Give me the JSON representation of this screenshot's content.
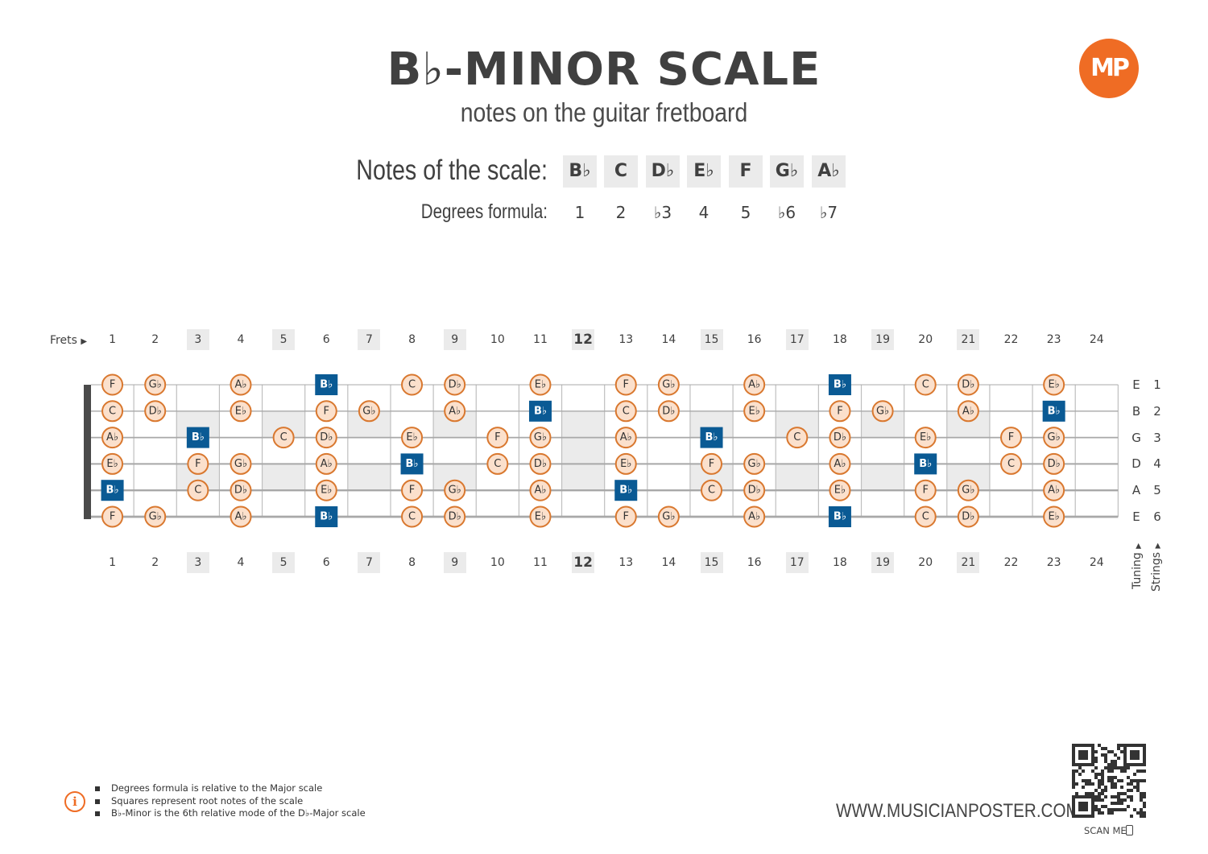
{
  "header": {
    "title": "B♭-MINOR SCALE",
    "subtitle": "notes on the guitar fretboard",
    "logo_text": "MP"
  },
  "scale": {
    "notes_label": "Notes of the scale:",
    "degrees_label": "Degrees formula:",
    "notes": [
      "B♭",
      "C",
      "D♭",
      "E♭",
      "F",
      "G♭",
      "A♭"
    ],
    "degrees": [
      "1",
      "2",
      "♭3",
      "4",
      "5",
      "♭6",
      "♭7"
    ]
  },
  "fretboard": {
    "frets_label": "Frets",
    "fret_numbers": [
      "1",
      "2",
      "3",
      "4",
      "5",
      "6",
      "7",
      "8",
      "9",
      "10",
      "11",
      "12",
      "13",
      "14",
      "15",
      "16",
      "17",
      "18",
      "19",
      "20",
      "21",
      "22",
      "23",
      "24"
    ],
    "marked_frets": [
      "3",
      "5",
      "7",
      "9",
      "15",
      "17",
      "19",
      "21"
    ],
    "double_marker_fret": "12",
    "tuning": [
      "E",
      "B",
      "G",
      "D",
      "A",
      "E"
    ],
    "string_numbers": [
      "1",
      "2",
      "3",
      "4",
      "5",
      "6"
    ],
    "tuning_label": "Tuning",
    "strings_label": "Strings",
    "root_note": "Bb",
    "strings": [
      [
        "F",
        "Gb",
        "",
        "Ab",
        "",
        "Bb",
        "",
        "C",
        "Db",
        "",
        "Eb",
        "",
        "F",
        "Gb",
        "",
        "Ab",
        "",
        "Bb",
        "",
        "C",
        "Db",
        "",
        "Eb",
        ""
      ],
      [
        "C",
        "Db",
        "",
        "Eb",
        "",
        "F",
        "Gb",
        "",
        "Ab",
        "",
        "Bb",
        "",
        "C",
        "Db",
        "",
        "Eb",
        "",
        "F",
        "Gb",
        "",
        "Ab",
        "",
        "Bb",
        ""
      ],
      [
        "Ab",
        "",
        "Bb",
        "",
        "C",
        "Db",
        "",
        "Eb",
        "",
        "F",
        "Gb",
        "",
        "Ab",
        "",
        "Bb",
        "",
        "C",
        "Db",
        "",
        "Eb",
        "",
        "F",
        "Gb",
        ""
      ],
      [
        "Eb",
        "",
        "F",
        "Gb",
        "",
        "Ab",
        "",
        "Bb",
        "",
        "C",
        "Db",
        "",
        "Eb",
        "",
        "F",
        "Gb",
        "",
        "Ab",
        "",
        "Bb",
        "",
        "C",
        "Db",
        ""
      ],
      [
        "Bb",
        "",
        "C",
        "Db",
        "",
        "Eb",
        "",
        "F",
        "Gb",
        "",
        "Ab",
        "",
        "Bb",
        "",
        "C",
        "Db",
        "",
        "Eb",
        "",
        "F",
        "Gb",
        "",
        "Ab",
        ""
      ],
      [
        "F",
        "Gb",
        "",
        "Ab",
        "",
        "Bb",
        "",
        "C",
        "Db",
        "",
        "Eb",
        "",
        "F",
        "Gb",
        "",
        "Ab",
        "",
        "Bb",
        "",
        "C",
        "Db",
        "",
        "Eb",
        ""
      ]
    ]
  },
  "legend": {
    "items": [
      "Degrees formula is relative to the Major scale",
      "Squares represent root notes of the scale",
      "B♭-Minor is the 6th relative mode of the D♭-Major scale"
    ]
  },
  "footer": {
    "website": "WWW.MUSICIANPOSTER.COM",
    "scan_label": "SCAN ME"
  },
  "colors": {
    "accent": "#ef6c24",
    "root": "#0a5a94",
    "note_fill": "#fbe0cc",
    "note_stroke": "#d9782f",
    "text": "#404040"
  }
}
